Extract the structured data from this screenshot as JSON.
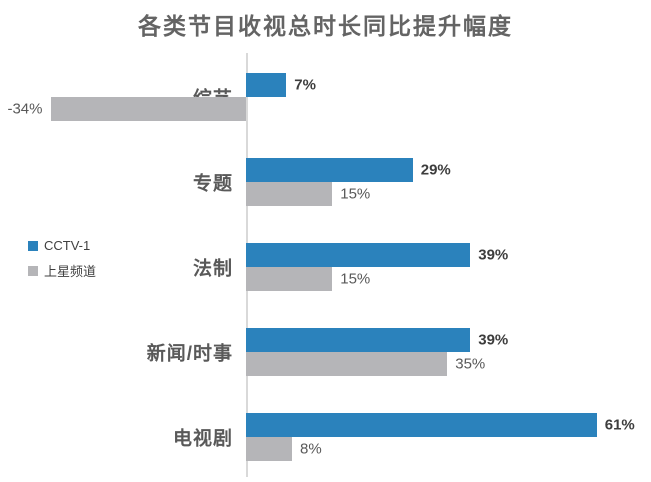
{
  "title": "各类节目收视总时长同比提升幅度",
  "chart_data": {
    "type": "bar",
    "orientation": "horizontal",
    "title": "各类节目收视总时长同比提升幅度",
    "categories": [
      "综艺",
      "专题",
      "法制",
      "新闻/时事",
      "电视剧"
    ],
    "series": [
      {
        "key": "cctv1",
        "name": "CCTV-1",
        "color": "#2b82bc",
        "values": [
          7,
          29,
          39,
          39,
          61
        ],
        "value_labels": [
          "7%",
          "29%",
          "39%",
          "39%",
          "61%"
        ]
      },
      {
        "key": "satellite",
        "name": "上星频道",
        "color": "#b5b5b8",
        "values": [
          -34,
          15,
          15,
          35,
          8
        ],
        "value_labels": [
          "-34%",
          "15%",
          "15%",
          "35%",
          "8%"
        ]
      }
    ],
    "value_unit": "%",
    "xlim": [
      -40,
      70
    ],
    "grid": false,
    "legend_position": "middle-left",
    "axis": "single vertical zero line, no ticks, no x-axis labels"
  },
  "legend": {
    "items": [
      {
        "label": "CCTV-1",
        "color": "#2b82bc"
      },
      {
        "label": "上星频道",
        "color": "#b5b5b8"
      }
    ]
  },
  "colors": {
    "cctv1_bar": "#2b82bc",
    "satellite_bar": "#b5b5b8",
    "axis_line": "#d9d9d9",
    "title_text": "#646464",
    "category_text": "#595959",
    "value_label_cctv1": "#3d3d3d",
    "value_label_satellite": "#595959",
    "background": "#ffffff"
  }
}
